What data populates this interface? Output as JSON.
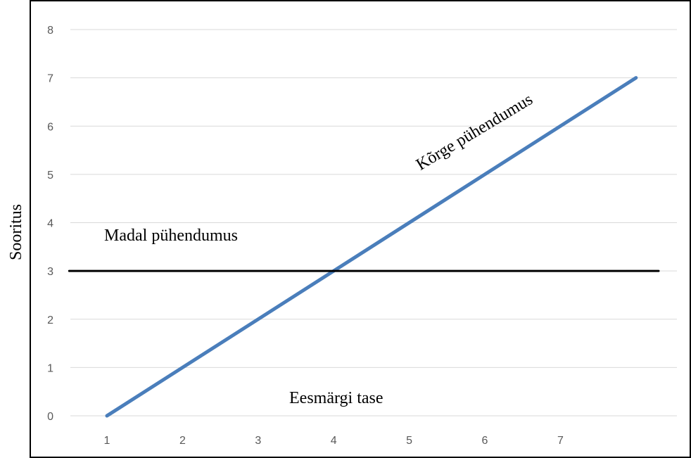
{
  "chart_data": {
    "type": "line",
    "title": "",
    "xlabel": "",
    "ylabel": "Sooritus",
    "x_ticks": [
      "1",
      "2",
      "3",
      "4",
      "5",
      "6",
      "7"
    ],
    "y_ticks": [
      "0",
      "1",
      "2",
      "3",
      "4",
      "5",
      "6",
      "7",
      "8"
    ],
    "ylim": [
      0,
      8
    ],
    "xlim": [
      0.5,
      8.5
    ],
    "grid": true,
    "legend": "none",
    "series": [
      {
        "name": "Kõrge pühendumus",
        "color": "#4a7ebb",
        "x": [
          1,
          8
        ],
        "y": [
          0,
          7
        ]
      },
      {
        "name": "Madal pühendumus",
        "color": "#000000",
        "x": [
          0.5,
          8.3
        ],
        "y": [
          3,
          3
        ]
      }
    ],
    "annotations": [
      {
        "text": "Madal pühendumus"
      },
      {
        "text": "Kõrge pühendumus"
      },
      {
        "text": "Eesmärgi tase"
      }
    ]
  }
}
